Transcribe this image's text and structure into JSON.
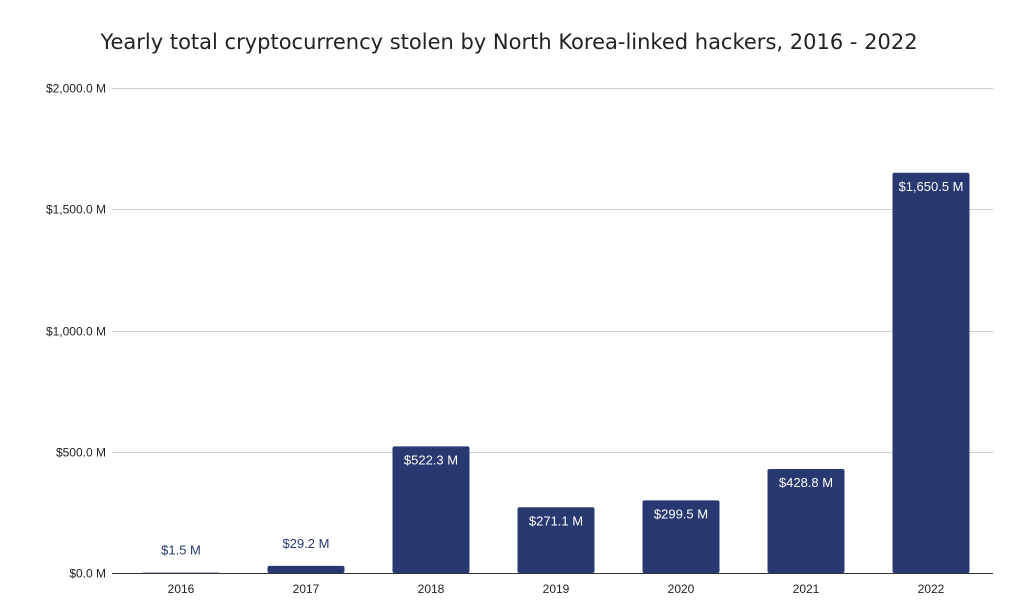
{
  "chart_data": {
    "type": "bar",
    "title": "Yearly total cryptocurrency stolen by North Korea-linked hackers, 2016 - 2022",
    "xlabel": "",
    "ylabel": "",
    "categories": [
      "2016",
      "2017",
      "2018",
      "2019",
      "2020",
      "2021",
      "2022"
    ],
    "values": [
      1.5,
      29.2,
      522.3,
      271.1,
      299.5,
      428.8,
      1650.5
    ],
    "data_labels": [
      "$1.5 M",
      "$29.2 M",
      "$522.3 M",
      "$271.1 M",
      "$299.5 M",
      "$428.8 M",
      "$1,650.5 M"
    ],
    "ylim": [
      0,
      2000
    ],
    "yticks": [
      0,
      500,
      1000,
      1500,
      2000
    ],
    "ytick_labels": [
      "$0.0 M",
      "$500.0 M",
      "$1,000.0 M",
      "$1,500.0 M",
      "$2,000.0 M"
    ],
    "grid": true,
    "legend": "none",
    "colors": {
      "bar": "#283870",
      "label_inside": "#ffffff",
      "label_outside": "#283870",
      "grid": "#cccccc",
      "axis": "#333333"
    }
  }
}
